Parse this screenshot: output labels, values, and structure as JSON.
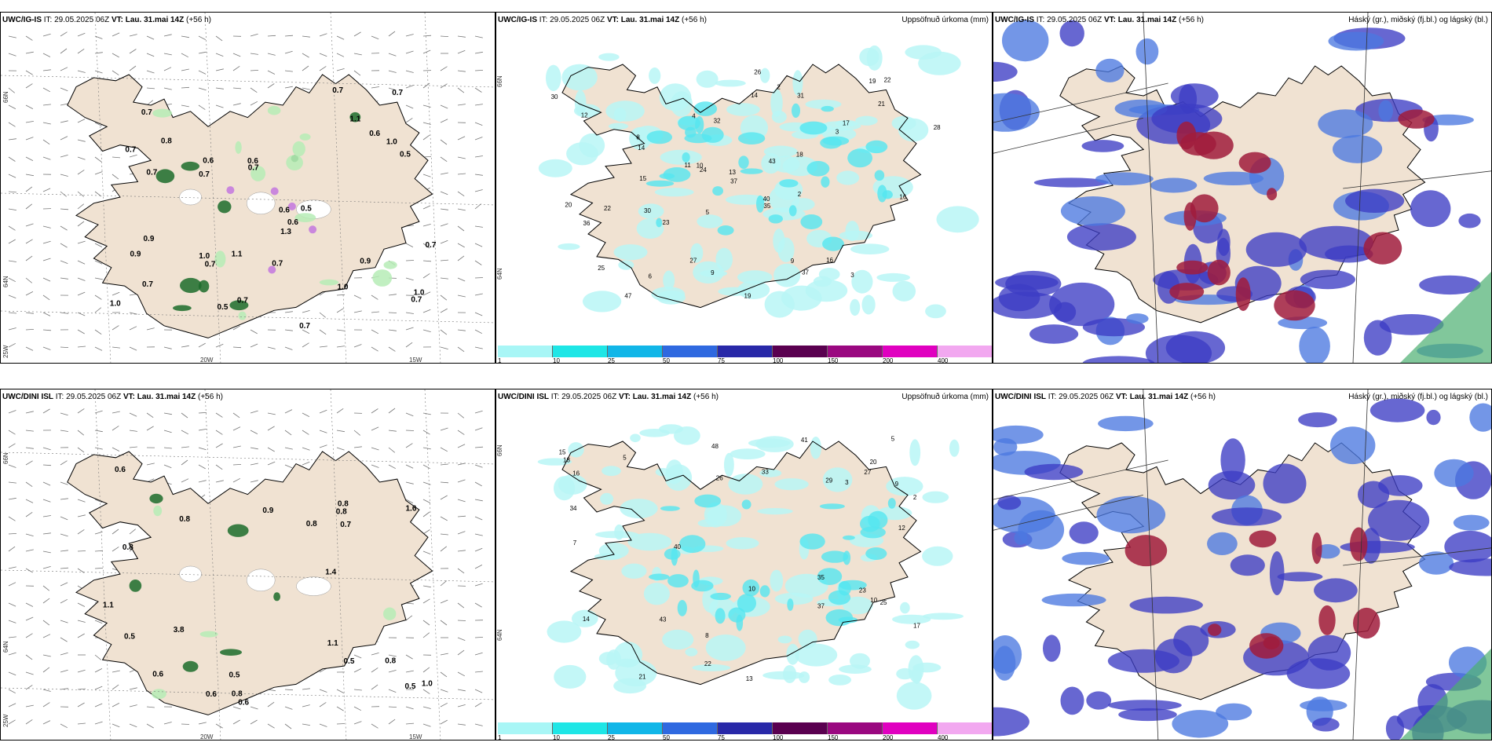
{
  "panels": [
    {
      "id": "p1",
      "model": "UWC/IG-IS",
      "it": "IT: 29.05.2025 06Z",
      "vt_label": "VT:",
      "vt": "Lau. 31.mai 14Z",
      "lead": "(+56 h)",
      "right_title": "",
      "type": "wind"
    },
    {
      "id": "p2",
      "model": "UWC/IG-IS",
      "it": "IT: 29.05.2025 06Z",
      "vt_label": "VT:",
      "vt": "Lau. 31.mai 14Z",
      "lead": "(+56 h)",
      "right_title": "Uppsöfnuð úrkoma (mm)",
      "type": "precip"
    },
    {
      "id": "p3",
      "model": "UWC/IG-IS",
      "it": "IT: 29.05.2025 06Z",
      "vt_label": "VT:",
      "vt": "Lau. 31.mai 14Z",
      "lead": "(+56 h)",
      "right_title": "Háský (gr.), miðský (fj.bl.) og lágský (bl.)",
      "type": "cloud"
    },
    {
      "id": "p4",
      "model": "UWC/DINI ISL",
      "it": "IT: 29.05.2025 06Z",
      "vt_label": "VT:",
      "vt": "Lau. 31.mai 14Z",
      "lead": "(+56 h)",
      "right_title": "",
      "type": "wind"
    },
    {
      "id": "p5",
      "model": "UWC/DINI ISL",
      "it": "IT: 29.05.2025 06Z",
      "vt_label": "VT:",
      "vt": "Lau. 31.mai 14Z",
      "lead": "(+56 h)",
      "right_title": "Uppsöfnuð úrkoma (mm)",
      "type": "precip"
    },
    {
      "id": "p6",
      "model": "UWC/DINI ISL",
      "it": "IT: 29.05.2025 06Z",
      "vt_label": "VT:",
      "vt": "Lau. 31.mai 14Z",
      "lead": "(+56 h)",
      "right_title": "Háský (gr.), miðský (fj.bl.) og lágský (bl.)",
      "type": "cloud"
    }
  ],
  "axis_labels": {
    "lat_66": "66N",
    "lat_64": "64N",
    "lon_25": "25W",
    "lon_20": "20W",
    "lon_15": "15W"
  },
  "precip_colorbar": {
    "labels": [
      "1",
      "10",
      "25",
      "50",
      "75",
      "100",
      "150",
      "200",
      "400",
      ""
    ],
    "colors": [
      "#a8f6f6",
      "#1ee6e6",
      "#11b6e8",
      "#2f69e0",
      "#2828a8",
      "#5a0050",
      "#9a0880",
      "#e000c0",
      "#f2a8f0",
      "#ffffff"
    ]
  },
  "wind_values_top": [
    "0.5",
    "0.6",
    "0.6",
    "0.7",
    "1.0",
    "0.6",
    "0.7",
    "0.7",
    "0.9",
    "1.0",
    "0.9",
    "0.5",
    "0.7",
    "0.8",
    "0.7",
    "1.3",
    "0.7",
    "1.0",
    "0.6",
    "1.0",
    "0.7",
    "0.7",
    "0.7",
    "1.1",
    "0.7",
    "0.6",
    "0.7",
    "0.9",
    "1.0",
    "0.7",
    "1.1",
    "0.7",
    "0.5",
    "0.7"
  ],
  "wind_values_bottom": [
    "0.5",
    "0.8",
    "0.6",
    "0.8",
    "0.6",
    "0.5",
    "0.9",
    "0.7",
    "0.8",
    "1.1",
    "0.8",
    "1.4",
    "0.6",
    "0.8",
    "1.0",
    "0.8",
    "0.5",
    "0.5",
    "3.8",
    "1.6",
    "0.8",
    "0.6",
    "1.1"
  ],
  "precip_values_top": [
    "2",
    "5",
    "3",
    "12",
    "14",
    "20",
    "16",
    "19",
    "8",
    "10",
    "14",
    "9",
    "21",
    "37",
    "43",
    "31",
    "40",
    "24",
    "36",
    "35",
    "32",
    "26",
    "28",
    "30",
    "23",
    "47",
    "37",
    "16",
    "19",
    "22",
    "25",
    "30",
    "27",
    "22",
    "17",
    "13",
    "6",
    "4",
    "3",
    "2",
    "9",
    "18",
    "11",
    "15"
  ],
  "precip_values_bottom": [
    "5",
    "8",
    "12",
    "17",
    "10",
    "16",
    "26",
    "23",
    "33",
    "35",
    "41",
    "37",
    "34",
    "29",
    "20",
    "25",
    "40",
    "43",
    "48",
    "27",
    "22",
    "14",
    "10",
    "13",
    "5",
    "3",
    "2",
    "7",
    "9",
    "15",
    "18",
    "21"
  ],
  "colors": {
    "land": "#f0e2d2",
    "sea": "#ffffff",
    "coast": "#000000",
    "cyan_light": "#b8f6f6",
    "cyan_mid": "#55e6f0",
    "cloud_blue": "#3c3cc4",
    "cloud_blue_light": "#4c78e0",
    "cloud_red": "#a01c3c",
    "green_light": "#b6ecb6",
    "green_dark": "#1c6c2c",
    "purple": "#c070e0"
  }
}
